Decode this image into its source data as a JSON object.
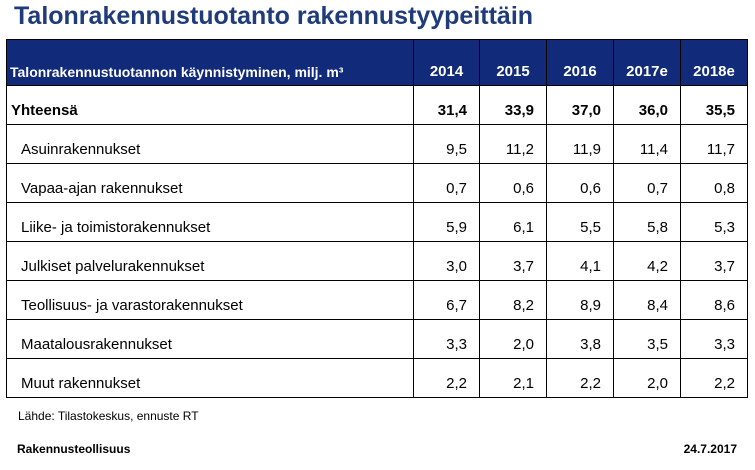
{
  "title": "Talonrakennustuotanto rakennustyypeittäin",
  "table": {
    "header_label": "Talonrakennustuotannon käynnistyminen, milj. m³",
    "years": [
      "2014",
      "2015",
      "2016",
      "2017e",
      "2018e"
    ],
    "total": {
      "label": "Yhteensä",
      "values": [
        "31,4",
        "33,9",
        "37,0",
        "36,0",
        "35,5"
      ]
    },
    "rows": [
      {
        "label": "Asuinrakennukset",
        "values": [
          "9,5",
          "11,2",
          "11,9",
          "11,4",
          "11,7"
        ]
      },
      {
        "label": "Vapaa-ajan rakennukset",
        "values": [
          "0,7",
          "0,6",
          "0,6",
          "0,7",
          "0,8"
        ]
      },
      {
        "label": "Liike- ja toimistorakennukset",
        "values": [
          "5,9",
          "6,1",
          "5,5",
          "5,8",
          "5,3"
        ]
      },
      {
        "label": "Julkiset palvelurakennukset",
        "values": [
          "3,0",
          "3,7",
          "4,1",
          "4,2",
          "3,7"
        ]
      },
      {
        "label": "Teollisuus- ja varastorakennukset",
        "values": [
          "6,7",
          "8,2",
          "8,9",
          "8,4",
          "8,6"
        ]
      },
      {
        "label": "Maatalousrakennukset",
        "values": [
          "3,3",
          "2,0",
          "3,8",
          "3,5",
          "3,3"
        ]
      },
      {
        "label": "Muut rakennukset",
        "values": [
          "2,2",
          "2,1",
          "2,2",
          "2,0",
          "2,2"
        ]
      }
    ]
  },
  "source": "Lähde: Tilastokeskus, ennuste RT",
  "footer": {
    "organization": "Rakennusteollisuus",
    "date": "24.7.2017"
  },
  "colors": {
    "title": "#1f3b7a",
    "header_bg": "#112a7a",
    "header_text": "#ffffff"
  }
}
